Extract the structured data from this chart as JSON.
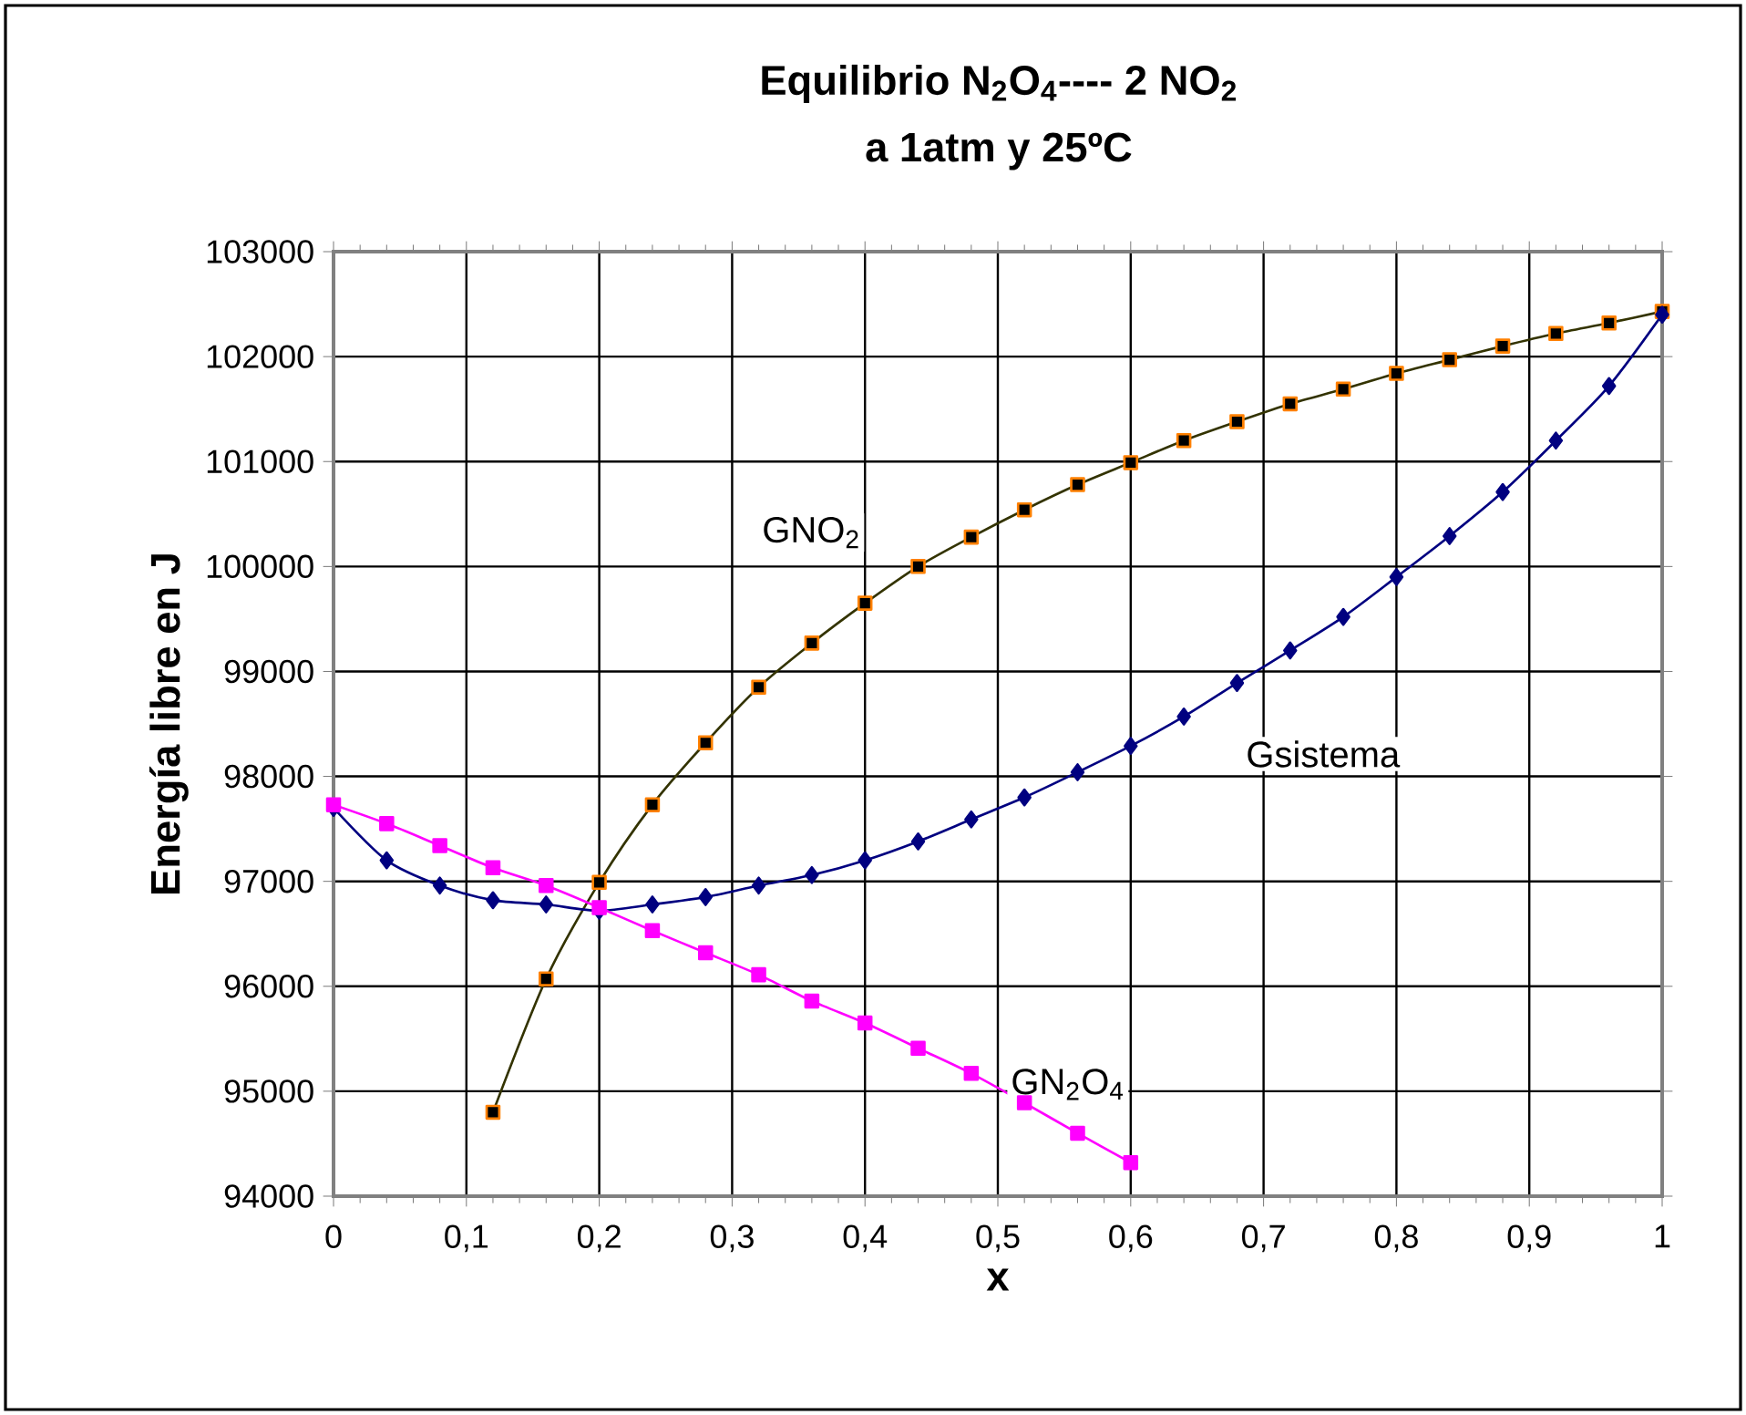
{
  "chart_data": {
    "type": "line",
    "title": "Equilibrio N$_{2}$O$_{4}$---- 2 NO$_{2}$",
    "subtitle": "a 1atm y  25ºC",
    "xlabel": "x",
    "ylabel": "Energía libre en J",
    "x": [
      0,
      0.04,
      0.08,
      0.12,
      0.16,
      0.2,
      0.24,
      0.28,
      0.32,
      0.36,
      0.4,
      0.44,
      0.48,
      0.52,
      0.56,
      0.6,
      0.64,
      0.68,
      0.72,
      0.76,
      0.8,
      0.84,
      0.88,
      0.92,
      0.96,
      1
    ],
    "series": [
      {
        "name": "GNO$_{2}$",
        "color": "#333300",
        "marker": "square",
        "values": [
          null,
          null,
          null,
          94800,
          96070,
          96990,
          97730,
          98320,
          98850,
          99270,
          99650,
          100000,
          100280,
          100540,
          100780,
          100990,
          101200,
          101380,
          101550,
          101690,
          101840,
          101970,
          102100,
          102220,
          102320,
          102430
        ]
      },
      {
        "name": "Gsistema",
        "color": "#000080",
        "marker": "diamond",
        "values": [
          97700,
          97200,
          96960,
          96820,
          96780,
          96720,
          96780,
          96850,
          96960,
          97060,
          97200,
          97380,
          97590,
          97800,
          98040,
          98290,
          98570,
          98890,
          99200,
          99520,
          99900,
          100290,
          100710,
          101200,
          101720,
          102400
        ]
      },
      {
        "name": "GN$_{2}$O$_{4}$",
        "color": "#ff00ff",
        "marker": "square",
        "values": [
          97730,
          97550,
          97340,
          97130,
          96960,
          96750,
          96530,
          96320,
          96110,
          95860,
          95650,
          95410,
          95170,
          94890,
          94600,
          94320,
          null,
          null,
          null,
          null,
          null,
          null,
          null,
          null,
          null,
          null
        ]
      }
    ],
    "xlim": [
      0,
      1
    ],
    "ylim": [
      94000,
      103000
    ],
    "xticks": [
      0,
      {
        "value": 0.1,
        "label": "0,1"
      },
      {
        "value": 0.2,
        "label": "0,2"
      },
      {
        "value": 0.3,
        "label": "0,3"
      },
      {
        "value": 0.4,
        "label": "0,4"
      },
      {
        "value": 0.5,
        "label": "0,5"
      },
      {
        "value": 0.6,
        "label": "0,6"
      },
      {
        "value": 0.7,
        "label": "0,7"
      },
      {
        "value": 0.8,
        "label": "0,8"
      },
      {
        "value": 0.9,
        "label": "0,9"
      },
      1
    ],
    "yticks": [
      94000,
      95000,
      96000,
      97000,
      98000,
      99000,
      100000,
      101000,
      102000,
      103000
    ],
    "grid": true
  }
}
